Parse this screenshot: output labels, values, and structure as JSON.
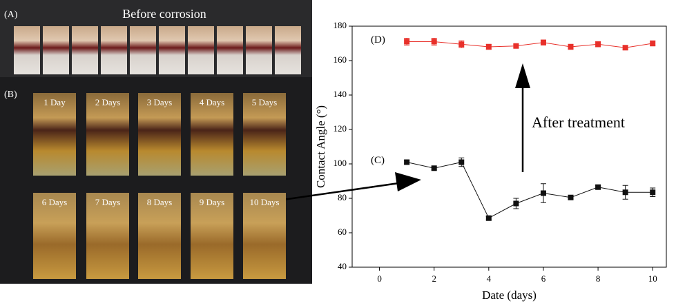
{
  "photo": {
    "label_a": "(A)",
    "title_a": "Before corrosion",
    "label_b": "(B)",
    "days": [
      "1 Day",
      "2 Days",
      "3 Days",
      "4 Days",
      "5 Days",
      "6 Days",
      "7 Days",
      "8 Days",
      "9 Days",
      "10 Days"
    ]
  },
  "chart_data": {
    "type": "line",
    "x": [
      1,
      2,
      3,
      4,
      5,
      6,
      7,
      8,
      9,
      10
    ],
    "series": [
      {
        "name": "(D)",
        "color": "#e8302a",
        "values": [
          171,
          171,
          169.5,
          168,
          168.5,
          170.5,
          168,
          169.5,
          167.5,
          170
        ],
        "errors": [
          2,
          2,
          2,
          1.5,
          1,
          1.5,
          1.5,
          1.5,
          1,
          1.5
        ]
      },
      {
        "name": "(C)",
        "color": "#111111",
        "values": [
          101,
          97.5,
          101,
          68.5,
          77,
          83,
          80.5,
          86.5,
          83.5,
          83.5
        ],
        "errors": [
          1,
          0.5,
          2.5,
          1,
          3,
          5.5,
          1,
          1,
          4,
          2.5
        ]
      }
    ],
    "annotation": "After treatment",
    "xlabel": "Date (days)",
    "ylabel": "Contact Angle (°)",
    "xlim": [
      -1,
      10.5
    ],
    "ylim": [
      40,
      180
    ],
    "xticks": [
      0,
      2,
      4,
      6,
      8,
      10
    ],
    "yticks": [
      40,
      60,
      80,
      100,
      120,
      140,
      160,
      180
    ]
  }
}
